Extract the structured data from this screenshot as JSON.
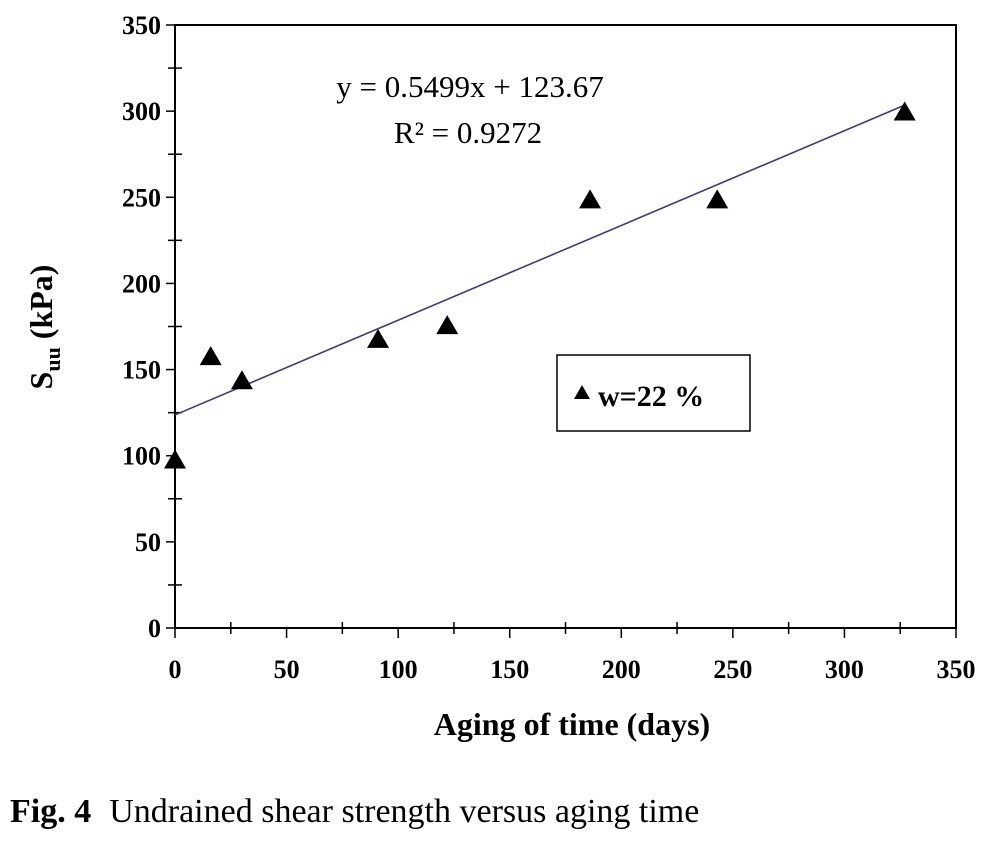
{
  "chart_data": {
    "type": "scatter",
    "xlabel": "Aging of time (days)",
    "ylabel_main": "S",
    "ylabel_sub": "uu",
    "ylabel_rest": " (kPa)",
    "xlim": [
      0,
      350
    ],
    "ylim": [
      0,
      350
    ],
    "xticks": [
      0,
      50,
      100,
      150,
      200,
      250,
      300,
      350
    ],
    "yticks": [
      0,
      50,
      100,
      150,
      200,
      250,
      300,
      350
    ],
    "grid": false,
    "series": [
      {
        "name": "w=22 %",
        "marker": "triangle",
        "color": "#000000",
        "points": [
          {
            "x": 0,
            "y": 97
          },
          {
            "x": 16,
            "y": 157
          },
          {
            "x": 30,
            "y": 143
          },
          {
            "x": 91,
            "y": 167
          },
          {
            "x": 122,
            "y": 175
          },
          {
            "x": 186,
            "y": 248
          },
          {
            "x": 243,
            "y": 248
          },
          {
            "x": 327,
            "y": 299
          }
        ]
      }
    ],
    "trendline": {
      "slope": 0.5499,
      "intercept": 123.67,
      "x_range": [
        0,
        327
      ],
      "color": "#3d3d7a",
      "equation": "y = 0.5499x + 123.67",
      "r2_label": "R² = 0.9272"
    },
    "legend": {
      "position": "center-right",
      "label": "w=22 %"
    }
  },
  "caption": {
    "label": "Fig. 4",
    "text": "Undrained shear strength versus aging time"
  }
}
